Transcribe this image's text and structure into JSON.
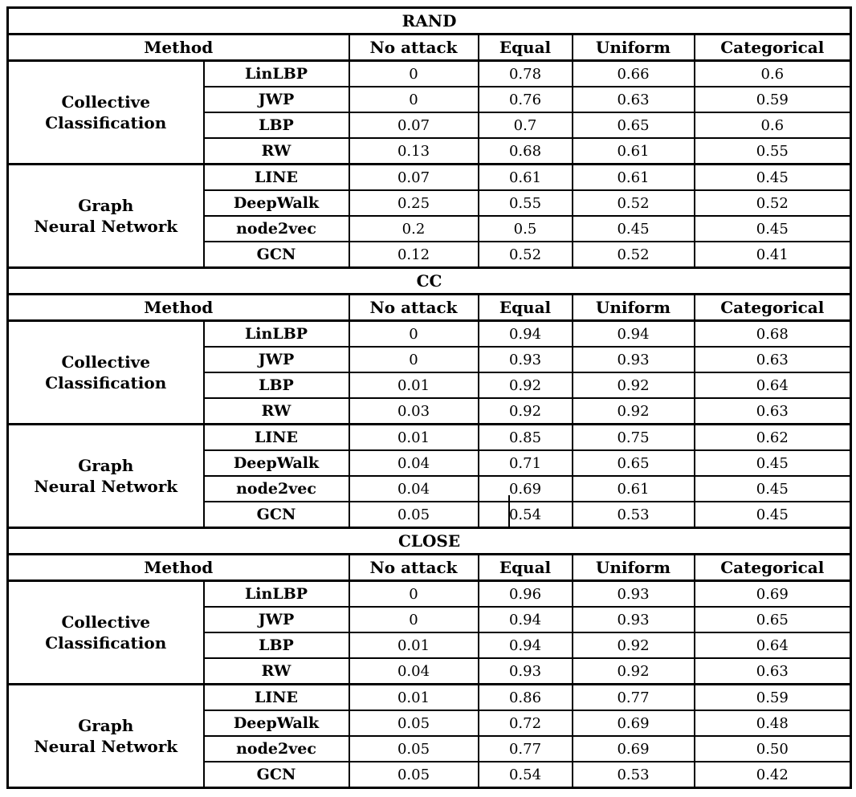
{
  "style": {
    "background_color": "#ffffff",
    "border_color": "#000000",
    "text_color": "#000000"
  },
  "tables": [
    {
      "title": "RAND",
      "header": {
        "method": "Method",
        "columns": [
          "No attack",
          "Equal",
          "Uniform",
          "Categorical"
        ]
      },
      "groups": [
        {
          "label_lines": [
            "Collective",
            "Classification"
          ],
          "rows": [
            {
              "method": "LinLBP",
              "values": [
                "0",
                "0.78",
                "0.66",
                "0.6"
              ]
            },
            {
              "method": "JWP",
              "values": [
                "0",
                "0.76",
                "0.63",
                "0.59"
              ]
            },
            {
              "method": "LBP",
              "values": [
                "0.07",
                "0.7",
                "0.65",
                "0.6"
              ]
            },
            {
              "method": "RW",
              "values": [
                "0.13",
                "0.68",
                "0.61",
                "0.55"
              ]
            }
          ]
        },
        {
          "label_lines": [
            "Graph",
            "Neural Network"
          ],
          "rows": [
            {
              "method": "LINE",
              "values": [
                "0.07",
                "0.61",
                "0.61",
                "0.45"
              ]
            },
            {
              "method": "DeepWalk",
              "values": [
                "0.25",
                "0.55",
                "0.52",
                "0.52"
              ]
            },
            {
              "method": "node2vec",
              "values": [
                "0.2",
                "0.5",
                "0.45",
                "0.45"
              ]
            },
            {
              "method": "GCN",
              "values": [
                "0.12",
                "0.52",
                "0.52",
                "0.41"
              ]
            }
          ]
        }
      ]
    },
    {
      "title": "CC",
      "header": {
        "method": "Method",
        "columns": [
          "No attack",
          "Equal",
          "Uniform",
          "Categorical"
        ]
      },
      "groups": [
        {
          "label_lines": [
            "Collective",
            "Classification"
          ],
          "rows": [
            {
              "method": "LinLBP",
              "values": [
                "0",
                "0.94",
                "0.94",
                "0.68"
              ]
            },
            {
              "method": "JWP",
              "values": [
                "0",
                "0.93",
                "0.93",
                "0.63"
              ]
            },
            {
              "method": "LBP",
              "values": [
                "0.01",
                "0.92",
                "0.92",
                "0.64"
              ]
            },
            {
              "method": "RW",
              "values": [
                "0.03",
                "0.92",
                "0.92",
                "0.63"
              ]
            }
          ]
        },
        {
          "label_lines": [
            "Graph",
            "Neural Network"
          ],
          "rows": [
            {
              "method": "LINE",
              "values": [
                "0.01",
                "0.85",
                "0.75",
                "0.62"
              ]
            },
            {
              "method": "DeepWalk",
              "values": [
                "0.04",
                "0.71",
                "0.65",
                "0.45"
              ]
            },
            {
              "method": "node2vec",
              "values": [
                "0.04",
                "0.69",
                "0.61",
                "0.45"
              ]
            },
            {
              "method": "GCN",
              "values": [
                "0.05",
                "0.54",
                "0.53",
                "0.45"
              ]
            }
          ]
        }
      ]
    },
    {
      "title": "CLOSE",
      "header": {
        "method": "Method",
        "columns": [
          "No attack",
          "Equal",
          "Uniform",
          "Categorical"
        ]
      },
      "groups": [
        {
          "label_lines": [
            "Collective",
            "Classification"
          ],
          "rows": [
            {
              "method": "LinLBP",
              "values": [
                "0",
                "0.96",
                "0.93",
                "0.69"
              ]
            },
            {
              "method": "JWP",
              "values": [
                "0",
                "0.94",
                "0.93",
                "0.65"
              ]
            },
            {
              "method": "LBP",
              "values": [
                "0.01",
                "0.94",
                "0.92",
                "0.64"
              ]
            },
            {
              "method": "RW",
              "values": [
                "0.04",
                "0.93",
                "0.92",
                "0.63"
              ]
            }
          ]
        },
        {
          "label_lines": [
            "Graph",
            "Neural Network"
          ],
          "rows": [
            {
              "method": "LINE",
              "values": [
                "0.01",
                "0.86",
                "0.77",
                "0.59"
              ]
            },
            {
              "method": "DeepWalk",
              "values": [
                "0.05",
                "0.72",
                "0.69",
                "0.48"
              ]
            },
            {
              "method": "node2vec",
              "values": [
                "0.05",
                "0.77",
                "0.69",
                "0.50"
              ]
            },
            {
              "method": "GCN",
              "values": [
                "0.05",
                "0.54",
                "0.53",
                "0.42"
              ]
            }
          ]
        }
      ]
    }
  ]
}
